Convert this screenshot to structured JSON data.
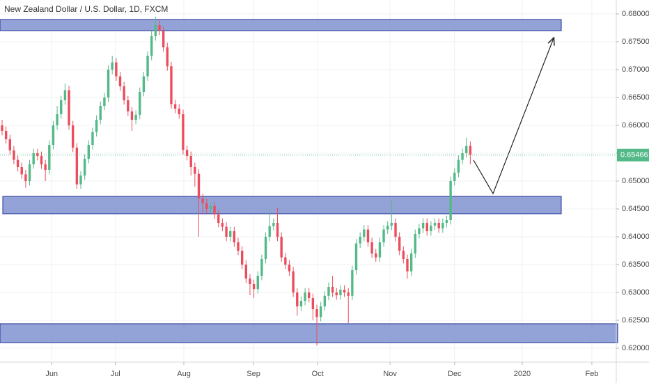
{
  "chart_data": {
    "type": "candlestick",
    "title": "New Zealand Dollar / U.S. Dollar, 1D, FXCM",
    "open": [
      0.66,
      0.659,
      0.6575,
      0.6555,
      0.6538,
      0.6525,
      0.6512,
      0.65,
      0.653,
      0.655,
      0.6545,
      0.653,
      0.652,
      0.6565,
      0.66,
      0.662,
      0.6645,
      0.6663,
      0.66,
      0.656,
      0.6494,
      0.651,
      0.654,
      0.6565,
      0.6588,
      0.661,
      0.6635,
      0.665,
      0.67,
      0.6713,
      0.6688,
      0.667,
      0.6645,
      0.6625,
      0.661,
      0.6619,
      0.666,
      0.6688,
      0.6725,
      0.676,
      0.678,
      0.677,
      0.674,
      0.6706,
      0.6638,
      0.663,
      0.662,
      0.6556,
      0.6545,
      0.6525,
      0.6513,
      0.6469,
      0.646,
      0.645,
      0.6455,
      0.644,
      0.6425,
      0.6418,
      0.64,
      0.641,
      0.639,
      0.6375,
      0.635,
      0.6325,
      0.6315,
      0.6306,
      0.633,
      0.636,
      0.64,
      0.6419,
      0.6425,
      0.64,
      0.6363,
      0.635,
      0.6338,
      0.63,
      0.6275,
      0.6285,
      0.63,
      0.629,
      0.627,
      0.6256,
      0.6275,
      0.6294,
      0.631,
      0.63,
      0.6295,
      0.6305,
      0.63,
      0.6294,
      0.634,
      0.6388,
      0.64,
      0.6413,
      0.639,
      0.637,
      0.6363,
      0.639,
      0.6413,
      0.642,
      0.6425,
      0.64,
      0.6375,
      0.636,
      0.6338,
      0.637,
      0.6405,
      0.6415,
      0.6425,
      0.641,
      0.642,
      0.6425,
      0.6415,
      0.6425,
      0.643,
      0.65,
      0.6515,
      0.6538,
      0.655,
      0.6563
    ],
    "high": [
      0.661,
      0.6598,
      0.6583,
      0.6563,
      0.6546,
      0.6533,
      0.652,
      0.6538,
      0.6558,
      0.6558,
      0.6553,
      0.6538,
      0.6573,
      0.6608,
      0.6635,
      0.6653,
      0.6675,
      0.6671,
      0.6608,
      0.6568,
      0.6518,
      0.6548,
      0.6573,
      0.6596,
      0.6618,
      0.6643,
      0.6658,
      0.6708,
      0.6725,
      0.6721,
      0.6696,
      0.6678,
      0.6653,
      0.6633,
      0.6627,
      0.6668,
      0.6696,
      0.6733,
      0.677,
      0.6795,
      0.679,
      0.6778,
      0.6748,
      0.6714,
      0.6646,
      0.6638,
      0.6628,
      0.6564,
      0.6553,
      0.6533,
      0.6521,
      0.6477,
      0.6468,
      0.6463,
      0.6463,
      0.6448,
      0.6433,
      0.6426,
      0.6418,
      0.6418,
      0.6398,
      0.6383,
      0.6358,
      0.6333,
      0.6323,
      0.6338,
      0.6368,
      0.6408,
      0.645,
      0.6433,
      0.6452,
      0.6408,
      0.6371,
      0.6358,
      0.6346,
      0.6308,
      0.6293,
      0.6308,
      0.6308,
      0.6298,
      0.6278,
      0.6283,
      0.6302,
      0.6318,
      0.633,
      0.6308,
      0.6313,
      0.6313,
      0.6308,
      0.6348,
      0.6396,
      0.6408,
      0.6421,
      0.6421,
      0.6398,
      0.6378,
      0.6398,
      0.6421,
      0.6428,
      0.6466,
      0.6433,
      0.6408,
      0.6383,
      0.6368,
      0.6378,
      0.6413,
      0.6423,
      0.6433,
      0.6433,
      0.6428,
      0.6433,
      0.6433,
      0.6433,
      0.6438,
      0.6508,
      0.6523,
      0.6546,
      0.6558,
      0.6578,
      0.6571
    ],
    "low": [
      0.6582,
      0.6567,
      0.6547,
      0.653,
      0.6517,
      0.6504,
      0.6488,
      0.6492,
      0.6522,
      0.6537,
      0.6522,
      0.65,
      0.6512,
      0.6557,
      0.6592,
      0.6612,
      0.6637,
      0.6592,
      0.6552,
      0.6486,
      0.6486,
      0.6502,
      0.6532,
      0.6557,
      0.658,
      0.6602,
      0.6627,
      0.6642,
      0.6692,
      0.668,
      0.6662,
      0.6637,
      0.6617,
      0.659,
      0.6602,
      0.6611,
      0.6652,
      0.668,
      0.6717,
      0.6752,
      0.6762,
      0.6732,
      0.6698,
      0.663,
      0.6622,
      0.6612,
      0.6548,
      0.6537,
      0.651,
      0.649,
      0.64,
      0.644,
      0.6442,
      0.6442,
      0.6432,
      0.6417,
      0.641,
      0.6392,
      0.6392,
      0.6382,
      0.6367,
      0.6342,
      0.6317,
      0.6295,
      0.629,
      0.6298,
      0.6322,
      0.6352,
      0.6392,
      0.6411,
      0.6392,
      0.6355,
      0.6342,
      0.633,
      0.6292,
      0.6258,
      0.6267,
      0.6277,
      0.6282,
      0.625,
      0.6205,
      0.6248,
      0.6267,
      0.6286,
      0.6292,
      0.6287,
      0.6287,
      0.6292,
      0.6245,
      0.6286,
      0.6332,
      0.638,
      0.6392,
      0.6382,
      0.6362,
      0.6355,
      0.6355,
      0.6382,
      0.6405,
      0.6412,
      0.6392,
      0.6367,
      0.6352,
      0.6325,
      0.633,
      0.6362,
      0.6397,
      0.6407,
      0.6402,
      0.6402,
      0.6412,
      0.6407,
      0.6407,
      0.6417,
      0.6422,
      0.6492,
      0.6507,
      0.653,
      0.6542,
      0.653
    ],
    "close": [
      0.659,
      0.6575,
      0.6555,
      0.6538,
      0.6525,
      0.6512,
      0.65,
      0.653,
      0.655,
      0.6545,
      0.653,
      0.652,
      0.6565,
      0.66,
      0.662,
      0.6645,
      0.6663,
      0.66,
      0.656,
      0.6494,
      0.651,
      0.654,
      0.6565,
      0.6588,
      0.661,
      0.6635,
      0.665,
      0.67,
      0.6713,
      0.6688,
      0.667,
      0.6645,
      0.6625,
      0.661,
      0.6619,
      0.666,
      0.6688,
      0.6725,
      0.676,
      0.678,
      0.677,
      0.674,
      0.6706,
      0.6638,
      0.663,
      0.662,
      0.6556,
      0.6545,
      0.6525,
      0.6513,
      0.6469,
      0.646,
      0.645,
      0.6455,
      0.644,
      0.6425,
      0.6418,
      0.64,
      0.641,
      0.639,
      0.6375,
      0.635,
      0.6325,
      0.6315,
      0.6306,
      0.633,
      0.636,
      0.64,
      0.6419,
      0.6425,
      0.64,
      0.6363,
      0.635,
      0.6338,
      0.63,
      0.6275,
      0.6285,
      0.63,
      0.629,
      0.627,
      0.6256,
      0.6275,
      0.6294,
      0.631,
      0.63,
      0.6295,
      0.6305,
      0.63,
      0.6294,
      0.634,
      0.6388,
      0.64,
      0.6413,
      0.639,
      0.637,
      0.6363,
      0.639,
      0.6413,
      0.642,
      0.6425,
      0.64,
      0.6375,
      0.636,
      0.6338,
      0.637,
      0.6405,
      0.6415,
      0.6425,
      0.641,
      0.642,
      0.6425,
      0.6415,
      0.6425,
      0.643,
      0.65,
      0.6515,
      0.6538,
      0.655,
      0.6563,
      0.6547
    ],
    "up_color": "#53b987",
    "down_color": "#eb4d5c",
    "last_price": 0.65466,
    "last_price_color": "#53b987",
    "zones": [
      {
        "low": 0.677,
        "high": 0.679
      },
      {
        "low": 0.64413,
        "high": 0.64725
      },
      {
        "low": 0.621,
        "high": 0.62438
      }
    ],
    "zone_color": "#8093d0",
    "xlim": [
      -0.53,
      156.1
    ],
    "xticks": [
      {
        "value": 12.6,
        "label": "Jun"
      },
      {
        "value": 28.8,
        "label": "Jul"
      },
      {
        "value": 46.2,
        "label": "Aug"
      },
      {
        "value": 63.9,
        "label": "Sep"
      },
      {
        "value": 80.2,
        "label": "Oct"
      },
      {
        "value": 98.6,
        "label": "Nov"
      },
      {
        "value": 115,
        "label": "Dec"
      },
      {
        "value": 132.2,
        "label": "2020"
      },
      {
        "value": 149.9,
        "label": "Feb"
      }
    ],
    "ylim": [
      0.6175,
      0.6825
    ],
    "yticks": [
      {
        "value": 0.62,
        "label": "0.62000"
      },
      {
        "value": 0.625,
        "label": "0.62500"
      },
      {
        "value": 0.63,
        "label": "0.63000"
      },
      {
        "value": 0.635,
        "label": "0.63500"
      },
      {
        "value": 0.64,
        "label": "0.64000"
      },
      {
        "value": 0.645,
        "label": "0.64500"
      },
      {
        "value": 0.65,
        "label": "0.65000"
      },
      {
        "value": 0.655,
        "label": "0.65500"
      },
      {
        "value": 0.66,
        "label": "0.66000"
      },
      {
        "value": 0.665,
        "label": "0.66500"
      },
      {
        "value": 0.67,
        "label": "0.67000"
      },
      {
        "value": 0.675,
        "label": "0.67500"
      },
      {
        "value": 0.68,
        "label": "0.68000"
      }
    ],
    "grid": true
  }
}
